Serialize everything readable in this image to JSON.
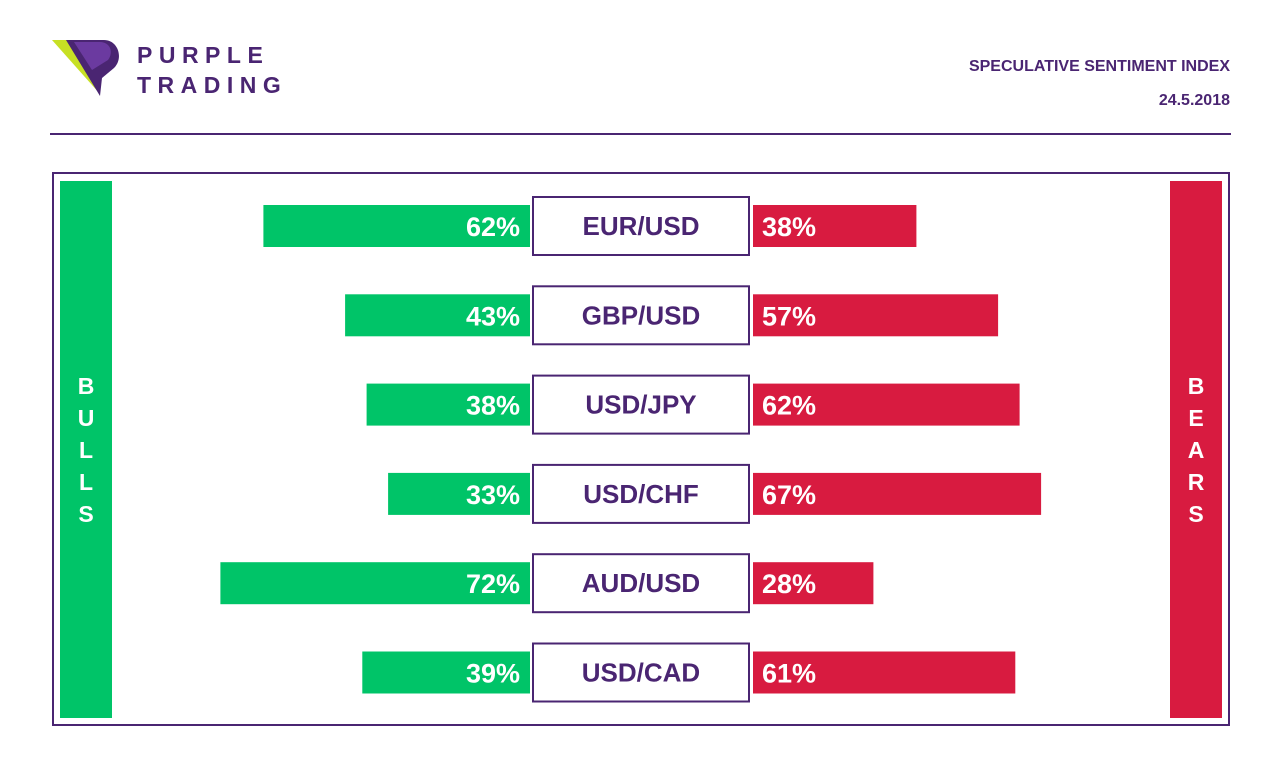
{
  "brand": {
    "line1": "PURPLE",
    "line2": "TRADING"
  },
  "header": {
    "title": "SPECULATIVE SENTIMENT INDEX",
    "date": "24.5.2018"
  },
  "sides": {
    "left": "BULLS",
    "right": "BEARS"
  },
  "colors": {
    "bulls": "#00c468",
    "bears": "#d81b40",
    "accent": "#4a2572",
    "background": "#ffffff"
  },
  "chart_data": {
    "type": "bar",
    "title": "SPECULATIVE SENTIMENT INDEX",
    "categories": [
      "EUR/USD",
      "GBP/USD",
      "USD/JPY",
      "USD/CHF",
      "AUD/USD",
      "USD/CAD"
    ],
    "series": [
      {
        "name": "BULLS",
        "values": [
          62,
          43,
          38,
          33,
          72,
          39
        ],
        "color": "#00c468"
      },
      {
        "name": "BEARS",
        "values": [
          38,
          57,
          62,
          67,
          28,
          61
        ],
        "color": "#d81b40"
      }
    ],
    "value_labels": {
      "BULLS": [
        "62%",
        "43%",
        "38%",
        "33%",
        "72%",
        "39%"
      ],
      "BEARS": [
        "38%",
        "57%",
        "62%",
        "67%",
        "28%",
        "61%"
      ]
    },
    "unit": "%",
    "grid": false
  }
}
